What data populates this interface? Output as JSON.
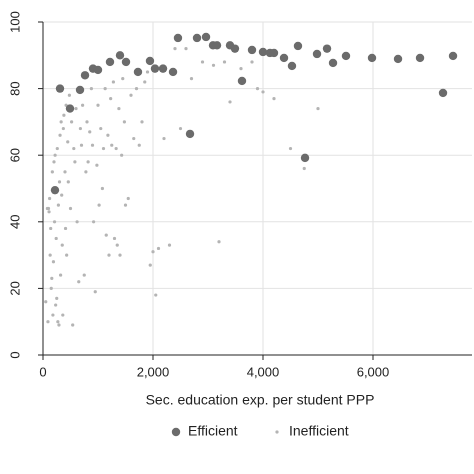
{
  "chart_data": {
    "type": "scatter",
    "x_label": "Sec. education exp. per student PPP",
    "xlim": [
      0,
      7800
    ],
    "ylim": [
      0,
      100
    ],
    "xticks": [
      0,
      {
        "value": 2000,
        "label": "2,000"
      },
      {
        "value": 4000,
        "label": "4,000"
      },
      {
        "value": 6000,
        "label": "6,000"
      }
    ],
    "yticks": [
      0,
      20,
      40,
      60,
      80,
      100
    ],
    "grid": true,
    "legend": "bottom",
    "series": [
      {
        "name": "Efficient",
        "color": "#6b6b6b",
        "x": [
          218,
          309,
          491,
          673,
          764,
          909,
          1000,
          1218,
          1400,
          1509,
          1727,
          1945,
          2036,
          2182,
          2364,
          2454,
          2673,
          2800,
          2964,
          3091,
          3164,
          3400,
          3490,
          3618,
          3800,
          4000,
          4127,
          4200,
          4382,
          4527,
          4636,
          4764,
          4982,
          5164,
          5273,
          5509,
          5982,
          6455,
          6855,
          7273,
          7455
        ],
        "values": [
          49.5,
          80,
          74,
          79.6,
          84,
          86,
          85.6,
          88,
          90,
          88,
          85,
          88.3,
          86,
          86,
          85,
          95.2,
          66.4,
          95.2,
          95.5,
          93,
          93,
          93,
          92,
          82.3,
          91.6,
          91,
          90.7,
          90.7,
          89.2,
          86.8,
          92.8,
          59.2,
          90.4,
          92,
          87.7,
          89.8,
          89.2,
          88.9,
          89.2,
          78.7,
          89.8
        ]
      },
      {
        "name": "Inefficient",
        "color": "#b4b4b4",
        "x": [
          50,
          80,
          90,
          100,
          110,
          120,
          130,
          140,
          150,
          160,
          170,
          180,
          190,
          200,
          210,
          220,
          230,
          240,
          250,
          260,
          270,
          280,
          290,
          300,
          310,
          320,
          330,
          340,
          350,
          360,
          370,
          380,
          400,
          410,
          420,
          430,
          450,
          460,
          480,
          500,
          520,
          540,
          560,
          580,
          600,
          620,
          650,
          680,
          700,
          720,
          750,
          780,
          800,
          820,
          850,
          880,
          900,
          920,
          950,
          980,
          1000,
          1020,
          1050,
          1080,
          1100,
          1130,
          1150,
          1180,
          1200,
          1230,
          1250,
          1280,
          1300,
          1330,
          1350,
          1380,
          1400,
          1430,
          1450,
          1480,
          1500,
          1550,
          1600,
          1650,
          1700,
          1750,
          1800,
          1850,
          1900,
          1950,
          2000,
          2050,
          2100,
          2200,
          2300,
          2400,
          2500,
          2600,
          2700,
          2900,
          3100,
          3200,
          3300,
          3400,
          3600,
          3800,
          3900,
          4000,
          4200,
          4500,
          4750,
          5000
        ],
        "values": [
          16,
          44,
          10,
          44,
          43,
          47,
          30,
          38,
          20,
          23,
          55,
          12,
          28,
          58,
          40,
          60,
          15,
          35,
          17,
          62,
          10,
          45,
          9,
          52,
          66,
          24,
          70,
          48,
          33,
          12,
          68,
          72,
          55,
          38,
          75,
          30,
          64,
          52,
          78,
          44,
          70,
          9,
          62,
          58,
          74,
          40,
          22,
          68,
          63,
          75,
          24,
          55,
          70,
          58,
          67,
          80,
          63,
          40,
          19,
          57,
          75,
          45,
          68,
          50,
          62,
          80,
          36,
          66,
          30,
          77,
          63,
          82,
          35,
          62,
          33,
          74,
          30,
          60,
          83,
          70,
          45,
          47,
          78,
          65,
          80,
          63,
          70,
          82,
          85,
          27,
          31,
          18,
          32,
          65,
          33,
          92,
          68,
          92,
          83,
          88,
          87,
          34,
          88,
          76,
          86,
          88,
          80,
          79,
          77,
          62,
          56,
          74
        ]
      }
    ]
  }
}
